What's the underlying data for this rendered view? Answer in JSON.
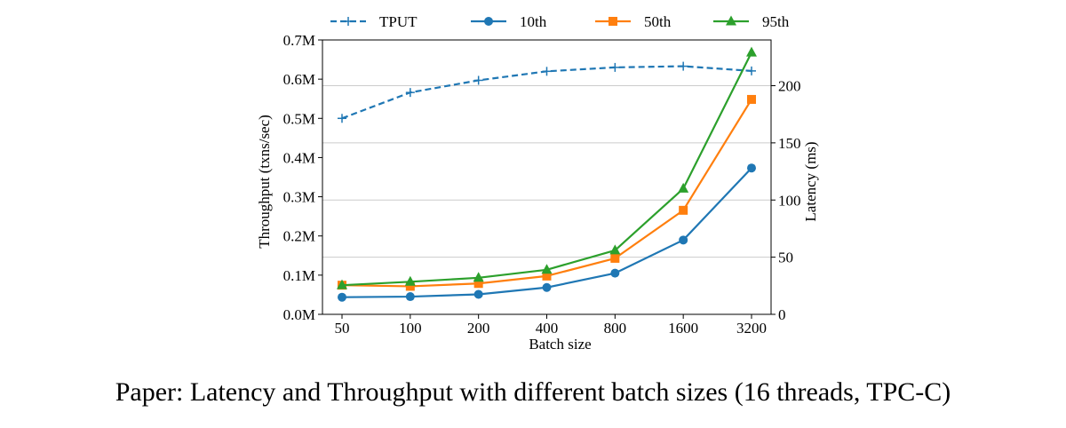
{
  "caption": "Paper: Latency and Throughput with different batch sizes (16 threads, TPC-C)",
  "chart_data": {
    "type": "line",
    "categories": [
      "50",
      "100",
      "200",
      "400",
      "800",
      "1600",
      "3200"
    ],
    "xlabel": "Batch size",
    "ylabel_left": "Throughput (txns/sec)",
    "ylabel_right": "Latency (ms)",
    "ylim_left": [
      0,
      0.7
    ],
    "yticks_left": [
      {
        "value": 0.0,
        "label": "0.0M"
      },
      {
        "value": 0.1,
        "label": "0.1M"
      },
      {
        "value": 0.2,
        "label": "0.2M"
      },
      {
        "value": 0.3,
        "label": "0.3M"
      },
      {
        "value": 0.4,
        "label": "0.4M"
      },
      {
        "value": 0.5,
        "label": "0.5M"
      },
      {
        "value": 0.6,
        "label": "0.6M"
      },
      {
        "value": 0.7,
        "label": "0.7M"
      }
    ],
    "ylim_right": [
      0,
      240
    ],
    "yticks_right": [
      {
        "value": 0,
        "label": "0"
      },
      {
        "value": 50,
        "label": "50"
      },
      {
        "value": 100,
        "label": "100"
      },
      {
        "value": 150,
        "label": "150"
      },
      {
        "value": 200,
        "label": "200"
      }
    ],
    "grid": "horizontal lines at right-axis ticks",
    "legend": "top, above plot",
    "series": [
      {
        "name": "TPUT",
        "axis": "left",
        "style": "dashed",
        "marker": "plus",
        "color": "#1f77b4",
        "values": [
          0.5,
          0.566,
          0.597,
          0.62,
          0.63,
          0.633,
          0.621
        ]
      },
      {
        "name": "10th",
        "axis": "right",
        "style": "solid",
        "marker": "circle",
        "color": "#1f77b4",
        "values": [
          15,
          15.5,
          17.5,
          23.5,
          36,
          65,
          128
        ]
      },
      {
        "name": "50th",
        "axis": "right",
        "style": "solid",
        "marker": "square",
        "color": "#ff7f0e",
        "values": [
          25.5,
          24.5,
          27,
          33.5,
          49,
          91,
          188
        ]
      },
      {
        "name": "95th",
        "axis": "right",
        "style": "solid",
        "marker": "triangle",
        "color": "#2ca02c",
        "values": [
          25.5,
          28.5,
          32,
          39,
          56,
          110,
          229
        ]
      }
    ]
  }
}
